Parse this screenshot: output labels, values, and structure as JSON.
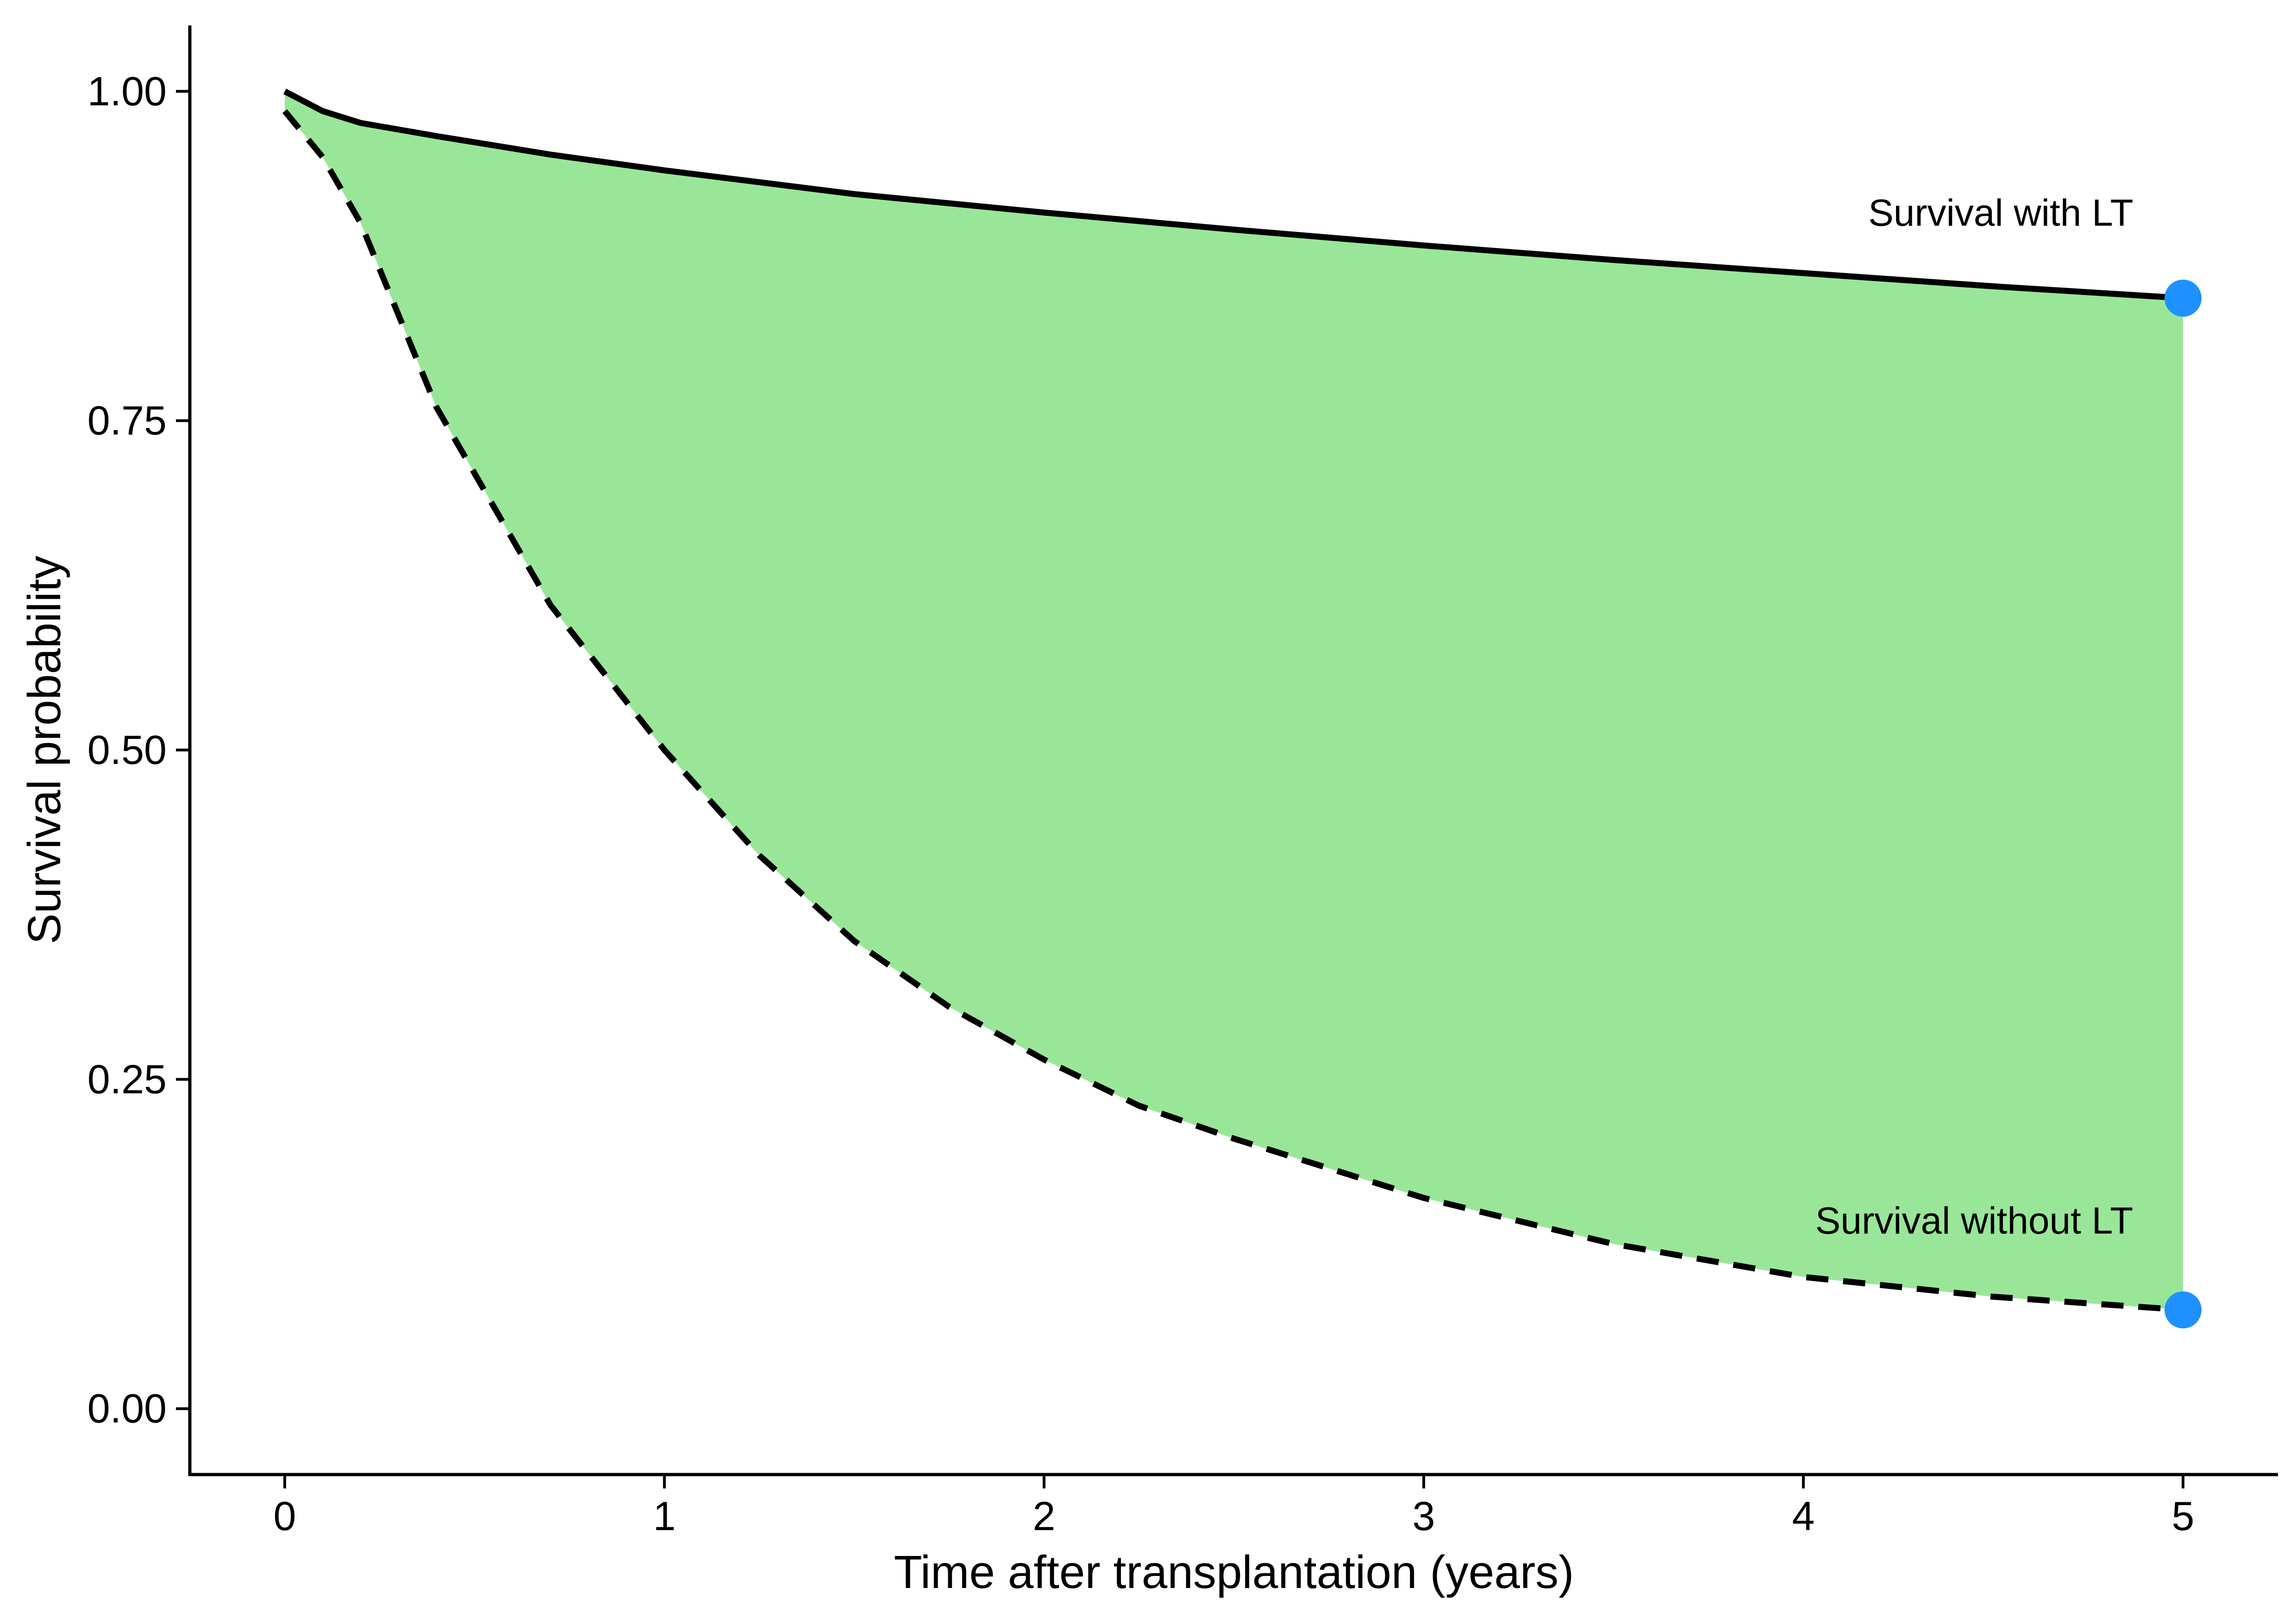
{
  "chart_data": {
    "type": "area",
    "xlabel": "Time after transplantation (years)",
    "ylabel": "Survival probability",
    "xlim": [
      -0.25,
      5.25
    ],
    "ylim": [
      -0.05,
      1.05
    ],
    "x_ticks": [
      0,
      1,
      2,
      3,
      4,
      5
    ],
    "x_tick_labels": [
      "0",
      "1",
      "2",
      "3",
      "4",
      "5"
    ],
    "y_ticks": [
      0,
      0.25,
      0.5,
      0.75,
      1.0
    ],
    "y_tick_labels": [
      "0.00",
      "0.25",
      "0.50",
      "0.75",
      "1.00"
    ],
    "grid": false,
    "legend": "none",
    "fill_color": "#99e699",
    "line_color": "#000000",
    "point_color": "#1e90ff",
    "series": [
      {
        "line_style": "solid",
        "x": [
          0,
          0.1,
          0.2,
          0.4,
          0.7,
          1.0,
          1.5,
          2.0,
          2.5,
          3.0,
          3.5,
          4.0,
          4.5,
          5.0
        ],
        "y": [
          1.0,
          0.985,
          0.976,
          0.966,
          0.952,
          0.94,
          0.922,
          0.908,
          0.895,
          0.883,
          0.872,
          0.862,
          0.852,
          0.843
        ]
      },
      {
        "line_style": "dashed",
        "x": [
          0,
          0.1,
          0.2,
          0.4,
          0.7,
          1.0,
          1.25,
          1.5,
          1.75,
          2.0,
          2.25,
          2.5,
          3.0,
          3.5,
          4.0,
          4.5,
          5.0
        ],
        "y": [
          0.985,
          0.95,
          0.9,
          0.76,
          0.61,
          0.5,
          0.42,
          0.355,
          0.305,
          0.265,
          0.23,
          0.205,
          0.16,
          0.125,
          0.1,
          0.085,
          0.075
        ]
      }
    ],
    "endpoints": [
      {
        "x": 5.0,
        "y": 0.843
      },
      {
        "x": 5.0,
        "y": 0.075
      }
    ],
    "annotations": [
      {
        "text": "Survival with LT",
        "x": 4.52,
        "y": 0.898
      },
      {
        "text": "Survival without LT",
        "x": 4.45,
        "y": 0.133
      }
    ]
  }
}
